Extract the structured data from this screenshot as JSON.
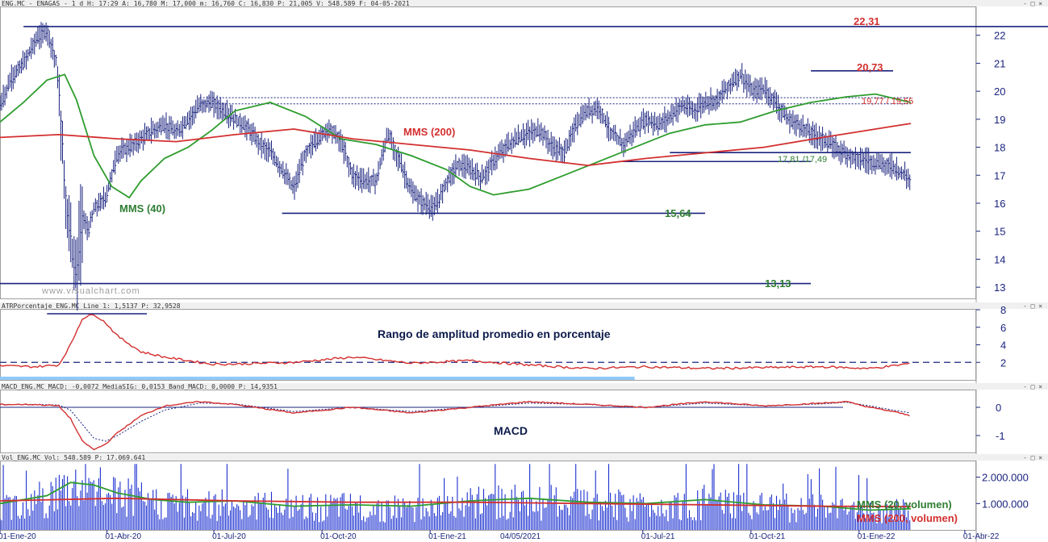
{
  "headers": {
    "price": "ENG.MC - ENAGAS - 1 d  H: 17:29  A: 16,780  M: 17,000  m: 16,760  C: 16,830  P: 21,005  V: 548.589  F: 04-05-2021",
    "atr": "ATRPorcentaje_ENG.MC  Line 1: 1,5137  P: 32,9528",
    "macd": "MACD_ENG.MC  MACD: -0,0072  MediaSIG: 0,0153  Band_MACD: 0,0000  P: 14,9351",
    "vol": "Vol_ENG.MC  Vol: 548.589  P: 17.069.641"
  },
  "window_buttons": "- □ ×",
  "watermark": "www.visualchart.com",
  "cursor_date": "04/05/2021",
  "colors": {
    "price": "#1a237e",
    "mms40": "#2e9c2e",
    "mms200": "#d32f2f",
    "level": "#1a237e",
    "label_red": "#d32f2f",
    "label_green": "#2e7d32",
    "volume": "#1a2fd0"
  },
  "chart_data": [
    {
      "type": "line",
      "panel": "price",
      "ylim": [
        12.6,
        23.0
      ],
      "y_ticks": [
        "13",
        "14",
        "15",
        "16",
        "17",
        "18",
        "19",
        "20",
        "21",
        "22"
      ],
      "x_ticks": [
        "01-Ene-20",
        "01-Abr-20",
        "01-Jul-20",
        "01-Oct-20",
        "01-Ene-21",
        "01-Jul-21",
        "01-Oct-21",
        "01-Ene-22",
        "01-Abr-22"
      ],
      "x_tick_days": [
        0,
        91,
        182,
        274,
        366,
        547,
        639,
        731,
        821
      ],
      "x_range_days": [
        0,
        830
      ],
      "series": [
        {
          "name": "",
          "role": "price",
          "x": [
            0,
            10,
            20,
            30,
            40,
            48,
            52,
            55,
            58,
            62,
            65,
            70,
            75,
            80,
            90,
            100,
            110,
            120,
            130,
            140,
            150,
            160,
            170,
            180,
            190,
            200,
            210,
            220,
            230,
            240,
            250,
            260,
            270,
            280,
            290,
            300,
            310,
            320,
            330,
            340,
            350,
            360,
            370,
            380,
            390,
            400,
            410,
            420,
            430,
            440,
            450,
            460,
            470,
            480,
            490,
            500,
            510,
            520,
            530,
            540,
            550,
            560,
            570,
            580,
            590,
            600,
            610,
            620,
            630,
            640,
            650,
            660,
            670,
            680,
            690,
            700,
            710,
            718,
            725,
            730,
            740,
            750,
            760,
            770,
            775
          ],
          "y": [
            19.5,
            20.5,
            21.0,
            21.8,
            22.2,
            21.0,
            19.0,
            16.5,
            15.5,
            14.0,
            13.3,
            15.5,
            15.0,
            15.8,
            16.2,
            17.8,
            18.0,
            18.3,
            18.6,
            18.8,
            18.5,
            19.0,
            19.5,
            19.6,
            19.3,
            19.0,
            18.7,
            18.2,
            17.8,
            17.2,
            16.5,
            17.8,
            18.3,
            18.7,
            18.2,
            17.0,
            16.8,
            16.8,
            18.5,
            17.5,
            16.4,
            16.0,
            15.8,
            16.8,
            17.4,
            17.2,
            16.9,
            17.5,
            18.0,
            18.3,
            18.5,
            18.6,
            18.0,
            17.8,
            18.8,
            19.3,
            19.4,
            18.5,
            18.1,
            18.6,
            19.0,
            18.8,
            19.1,
            19.5,
            19.3,
            19.6,
            19.7,
            20.2,
            20.6,
            20.0,
            20.1,
            19.6,
            19.0,
            18.8,
            18.5,
            18.3,
            18.0,
            17.8,
            17.7,
            17.6,
            17.5,
            17.4,
            17.3,
            17.0,
            16.8
          ]
        },
        {
          "name": "MMS (40)",
          "role": "mms40",
          "x": [
            0,
            20,
            40,
            55,
            65,
            80,
            95,
            110,
            120,
            140,
            160,
            180,
            200,
            230,
            260,
            290,
            320,
            350,
            380,
            400,
            420,
            450,
            480,
            510,
            540,
            570,
            600,
            630,
            660,
            690,
            720,
            745,
            775
          ],
          "y": [
            18.9,
            19.6,
            20.4,
            20.6,
            19.7,
            17.7,
            16.6,
            16.2,
            16.8,
            17.6,
            18.0,
            18.6,
            19.3,
            19.6,
            19.1,
            18.3,
            18.1,
            17.7,
            17.2,
            16.6,
            16.3,
            16.5,
            17.0,
            17.5,
            18.0,
            18.5,
            18.8,
            18.9,
            19.3,
            19.6,
            19.8,
            19.9,
            19.6
          ]
        },
        {
          "name": "MMS (200)",
          "role": "mms200",
          "x": [
            0,
            50,
            100,
            150,
            200,
            250,
            300,
            350,
            400,
            450,
            500,
            550,
            600,
            650,
            700,
            730,
            760,
            775
          ],
          "y": [
            18.35,
            18.45,
            18.3,
            18.2,
            18.45,
            18.65,
            18.3,
            18.1,
            17.9,
            17.6,
            17.35,
            17.6,
            17.8,
            18.0,
            18.35,
            18.55,
            18.75,
            18.85
          ]
        }
      ],
      "levels": [
        {
          "value": 22.31,
          "label": "22,31",
          "from_day": 20,
          "to_day": 940,
          "style": "solid"
        },
        {
          "value": 20.73,
          "label": "20,73",
          "from_day": 690,
          "to_day": 760,
          "style": "solid"
        },
        {
          "value": 19.77,
          "from_day": 170,
          "to_day": 775,
          "style": "dotted"
        },
        {
          "value": 19.55,
          "from_day": 170,
          "to_day": 775,
          "style": "dotted"
        },
        {
          "value": 17.81,
          "from_day": 570,
          "to_day": 775,
          "style": "solid"
        },
        {
          "value": 17.49,
          "from_day": 530,
          "to_day": 690,
          "style": "solid"
        },
        {
          "value": 15.64,
          "label": "15,64",
          "from_day": 240,
          "to_day": 600,
          "style": "solid"
        },
        {
          "value": 13.13,
          "label": "13,13",
          "from_day": 0,
          "to_day": 690,
          "style": "solid"
        }
      ],
      "annotations": [
        {
          "text": "19,77 / 19,55",
          "near_day": 790,
          "near_value": 19.65
        },
        {
          "text": "17,81 /17,49",
          "near_day": 700,
          "near_value": 17.5
        }
      ]
    },
    {
      "type": "line",
      "panel": "atr",
      "title": "Rango de amplitud promedio en porcentaje",
      "ylim": [
        0,
        8
      ],
      "y_ticks": [
        "2",
        "4",
        "6",
        "8"
      ],
      "x": [
        0,
        30,
        50,
        60,
        70,
        80,
        90,
        100,
        120,
        140,
        160,
        180,
        200,
        250,
        300,
        350,
        400,
        450,
        500,
        550,
        600,
        650,
        700,
        740,
        760,
        775
      ],
      "values": [
        1.6,
        1.5,
        1.7,
        4.0,
        7.0,
        7.5,
        6.5,
        5.0,
        3.2,
        2.6,
        2.2,
        1.8,
        1.8,
        2.0,
        2.6,
        1.9,
        2.2,
        1.7,
        1.3,
        1.5,
        1.3,
        1.4,
        1.5,
        1.3,
        1.6,
        1.9
      ],
      "reference_line": 2.0
    },
    {
      "type": "line",
      "panel": "macd",
      "title": "MACD",
      "ylim": [
        -1.6,
        0.6
      ],
      "y_ticks": [
        "0",
        "-1"
      ],
      "series": [
        {
          "name": "MACD",
          "x": [
            0,
            30,
            50,
            60,
            70,
            80,
            90,
            100,
            120,
            140,
            170,
            200,
            250,
            300,
            350,
            400,
            450,
            500,
            550,
            600,
            650,
            700,
            720,
            740,
            760,
            775
          ],
          "values": [
            0.1,
            0.1,
            0.05,
            -0.4,
            -1.2,
            -1.5,
            -1.3,
            -0.9,
            -0.3,
            0.05,
            0.2,
            0.1,
            -0.2,
            0.0,
            -0.2,
            0.0,
            0.2,
            0.1,
            0.0,
            0.2,
            0.05,
            0.15,
            0.2,
            0.0,
            -0.15,
            -0.3
          ]
        },
        {
          "name": "MediaSIG",
          "x": [
            0,
            30,
            50,
            60,
            70,
            80,
            90,
            100,
            120,
            140,
            170,
            200,
            250,
            300,
            350,
            400,
            450,
            500,
            550,
            600,
            650,
            700,
            720,
            740,
            760,
            775
          ],
          "values": [
            0.1,
            0.1,
            0.08,
            -0.1,
            -0.6,
            -1.1,
            -1.2,
            -1.0,
            -0.5,
            -0.1,
            0.15,
            0.12,
            -0.15,
            0.0,
            -0.15,
            0.0,
            0.15,
            0.1,
            0.0,
            0.15,
            0.05,
            0.12,
            0.18,
            0.05,
            -0.1,
            -0.2
          ]
        }
      ],
      "reference_line": 0.0
    },
    {
      "type": "bar",
      "panel": "volume",
      "ylim": [
        0,
        2600000
      ],
      "y_ticks": [
        "1.000.000",
        "2.000.000"
      ],
      "bars_from_day": 0,
      "bars_to_day": 775,
      "sma20_x": [
        0,
        40,
        60,
        80,
        100,
        130,
        160,
        200,
        250,
        300,
        350,
        400,
        450,
        500,
        550,
        600,
        650,
        700,
        740,
        775
      ],
      "sma20": [
        1000000,
        1300000,
        1800000,
        1700000,
        1400000,
        1150000,
        1050000,
        1100000,
        900000,
        950000,
        900000,
        1100000,
        1200000,
        1050000,
        1000000,
        1150000,
        950000,
        900000,
        750000,
        800000
      ],
      "sma200_x": [
        0,
        100,
        200,
        300,
        400,
        500,
        600,
        700,
        775
      ],
      "sma200": [
        1100000,
        1200000,
        1100000,
        1050000,
        1050000,
        1000000,
        950000,
        900000,
        880000
      ],
      "legend": [
        "MMS (20, volumen)",
        "MMS (200, volumen)"
      ]
    }
  ]
}
